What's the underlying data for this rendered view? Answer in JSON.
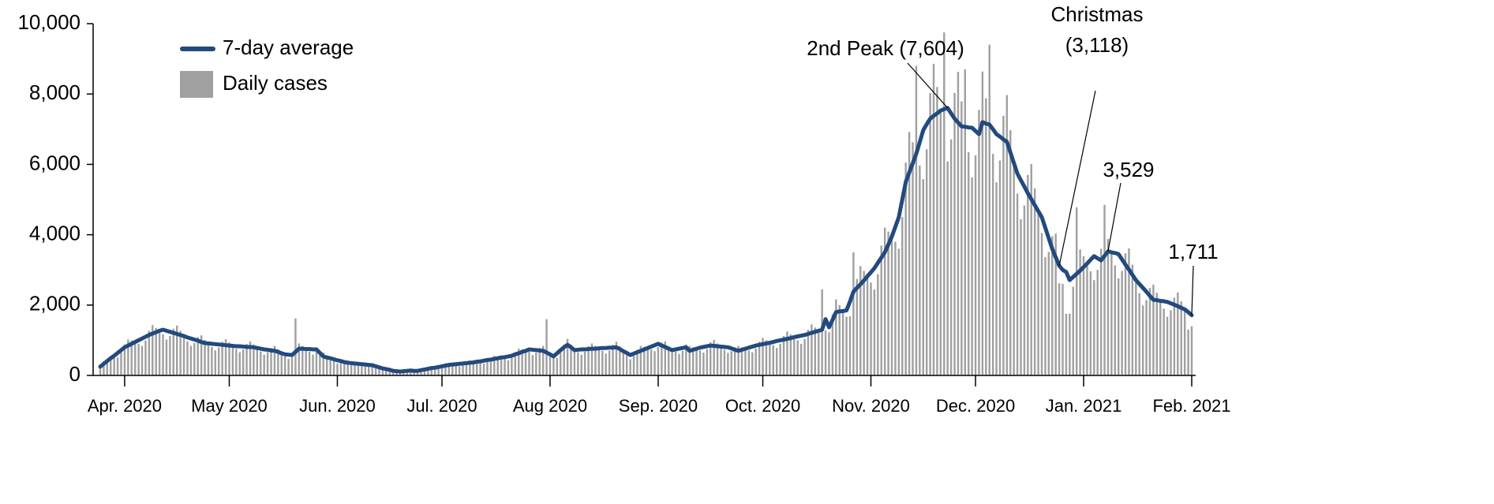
{
  "chart_data": {
    "type": "bar-line",
    "legend": {
      "position": "top-left"
    },
    "xlim": [
      0,
      313
    ],
    "xticks": [
      {
        "value": 7,
        "label": "Apr. 2020"
      },
      {
        "value": 37,
        "label": "May 2020"
      },
      {
        "value": 68,
        "label": "Jun. 2020"
      },
      {
        "value": 98,
        "label": "Jul. 2020"
      },
      {
        "value": 129,
        "label": "Aug 2020"
      },
      {
        "value": 160,
        "label": "Sep. 2020"
      },
      {
        "value": 190,
        "label": "Oct. 2020"
      },
      {
        "value": 221,
        "label": "Nov. 2020"
      },
      {
        "value": 251,
        "label": "Dec. 2020"
      },
      {
        "value": 282,
        "label": "Jan. 2021"
      },
      {
        "value": 313,
        "label": "Feb. 2021"
      }
    ],
    "ylim": [
      0,
      10000
    ],
    "yticks": [
      0,
      {
        "value": 2000,
        "label": "2,000"
      },
      {
        "value": 4000,
        "label": "4,000"
      },
      {
        "value": 6000,
        "label": "6,000"
      },
      {
        "value": 8000,
        "label": "8,000"
      },
      {
        "value": 10000,
        "label": "10,000"
      }
    ],
    "series": [
      {
        "name": "7-day average",
        "type": "line",
        "color": "#224a7e",
        "values": [
          250,
          330,
          410,
          490,
          560,
          640,
          720,
          800,
          850,
          900,
          950,
          1000,
          1050,
          1100,
          1150,
          1190,
          1230,
          1270,
          1300,
          1270,
          1240,
          1210,
          1180,
          1150,
          1120,
          1080,
          1050,
          1020,
          990,
          950,
          920,
          910,
          900,
          890,
          880,
          870,
          860,
          850,
          840,
          830,
          830,
          820,
          810,
          810,
          800,
          780,
          760,
          740,
          730,
          710,
          700,
          670,
          630,
          600,
          590,
          580,
          670,
          760,
          760,
          750,
          750,
          740,
          740,
          640,
          540,
          510,
          490,
          460,
          430,
          410,
          380,
          360,
          350,
          340,
          330,
          320,
          310,
          300,
          290,
          260,
          230,
          200,
          180,
          160,
          130,
          120,
          110,
          120,
          130,
          140,
          130,
          130,
          150,
          170,
          190,
          210,
          220,
          240,
          260,
          280,
          300,
          310,
          320,
          330,
          340,
          350,
          360,
          370,
          390,
          400,
          420,
          440,
          450,
          470,
          490,
          510,
          520,
          540,
          560,
          600,
          630,
          670,
          700,
          740,
          730,
          720,
          710,
          700,
          650,
          600,
          540,
          630,
          720,
          800,
          870,
          800,
          720,
          730,
          740,
          740,
          750,
          760,
          760,
          770,
          780,
          780,
          790,
          790,
          800,
          750,
          690,
          640,
          580,
          620,
          660,
          700,
          740,
          780,
          820,
          860,
          900,
          850,
          810,
          760,
          720,
          740,
          760,
          780,
          800,
          700,
          730,
          760,
          790,
          810,
          830,
          850,
          840,
          830,
          820,
          810,
          800,
          770,
          730,
          700,
          730,
          760,
          790,
          820,
          850,
          870,
          890,
          910,
          930,
          950,
          980,
          1000,
          1020,
          1040,
          1060,
          1090,
          1110,
          1130,
          1150,
          1180,
          1210,
          1240,
          1270,
          1300,
          1600,
          1370,
          1580,
          1800,
          1820,
          1830,
          1850,
          2100,
          2380,
          2490,
          2590,
          2700,
          2820,
          2930,
          3050,
          3200,
          3350,
          3500,
          3720,
          3950,
          4220,
          4500,
          5000,
          5500,
          5770,
          6030,
          6300,
          6630,
          6970,
          7140,
          7300,
          7380,
          7450,
          7530,
          7570,
          7604,
          7450,
          7300,
          7190,
          7080,
          7070,
          7050,
          7040,
          6950,
          6860,
          7200,
          7160,
          7130,
          7000,
          6860,
          6790,
          6710,
          6640,
          6340,
          6040,
          5740,
          5550,
          5370,
          5180,
          5010,
          4840,
          4670,
          4500,
          4200,
          3900,
          3600,
          3360,
          3118,
          3000,
          2940,
          2710,
          2800,
          2890,
          2980,
          3080,
          3180,
          3290,
          3390,
          3330,
          3270,
          3400,
          3529,
          3500,
          3480,
          3450,
          3300,
          3150,
          3010,
          2860,
          2710,
          2600,
          2490,
          2380,
          2260,
          2150,
          2140,
          2120,
          2110,
          2090,
          2050,
          2010,
          1970,
          1920,
          1880,
          1800,
          1711
        ]
      },
      {
        "name": "Daily cases",
        "type": "bar",
        "color": "#a0a0a0",
        "values": [
          280,
          400,
          450,
          490,
          500,
          510,
          650,
          880,
          1020,
          990,
          950,
          900,
          840,
          990,
          1270,
          1430,
          1350,
          1270,
          1170,
          1020,
          1120,
          1330,
          1420,
          1270,
          1120,
          970,
          840,
          920,
          1090,
          1140,
          1010,
          910,
          810,
          710,
          790,
          960,
          1030,
          940,
          840,
          750,
          660,
          740,
          890,
          970,
          880,
          780,
          680,
          590,
          660,
          780,
          840,
          740,
          630,
          540,
          470,
          520,
          1620,
          910,
          840,
          750,
          680,
          590,
          670,
          700,
          650,
          560,
          490,
          410,
          340,
          370,
          420,
          430,
          390,
          340,
          300,
          260,
          280,
          330,
          350,
          290,
          230,
          180,
          140,
          140,
          140,
          140,
          120,
          120,
          120,
          110,
          120,
          140,
          180,
          190,
          190,
          190,
          180,
          220,
          290,
          340,
          330,
          310,
          290,
          260,
          310,
          390,
          430,
          410,
          390,
          360,
          340,
          400,
          500,
          560,
          540,
          510,
          470,
          430,
          500,
          660,
          760,
          740,
          700,
          670,
          580,
          650,
          780,
          840,
          1600,
          600,
          490,
          500,
          650,
          880,
          1040,
          880,
          720,
          660,
          590,
          670,
          830,
          910,
          840,
          770,
          700,
          620,
          710,
          870,
          960,
          830,
          690,
          580,
          460,
          560,
          730,
          840,
          810,
          780,
          740,
          690,
          810,
          940,
          970,
          840,
          720,
          670,
          610,
          700,
          880,
          840,
          800,
          760,
          710,
          650,
          750,
          940,
          1010,
          910,
          820,
          730,
          640,
          690,
          800,
          840,
          800,
          760,
          710,
          660,
          770,
          960,
          1070,
          1000,
          930,
          860,
          780,
          900,
          1120,
          1250,
          1170,
          1090,
          1000,
          900,
          1040,
          1300,
          1450,
          1360,
          1270,
          2450,
          1280,
          1230,
          1740,
          2160,
          2000,
          1830,
          1670,
          1680,
          3500,
          2740,
          3110,
          2970,
          2820,
          2640,
          2440,
          2880,
          3690,
          4200,
          4090,
          3950,
          3800,
          3600,
          4500,
          6050,
          6920,
          6630,
          8800,
          5970,
          5580,
          6430,
          8030,
          8860,
          8200,
          7530,
          9750,
          6080,
          6710,
          8030,
          8630,
          7790,
          8700,
          6350,
          5630,
          6260,
          7550,
          8640,
          7880,
          9400,
          6300,
          5490,
          6110,
          7380,
          7970,
          6970,
          6040,
          5170,
          4440,
          4830,
          5700,
          6010,
          5320,
          4670,
          4050,
          3360,
          3510,
          3960,
          4030,
          2620,
          2600,
          1750,
          1760,
          2520,
          4780,
          3580,
          3390,
          3180,
          2960,
          2710,
          3000,
          3600,
          4850,
          3880,
          3500,
          3130,
          2760,
          2970,
          3470,
          3610,
          3150,
          2710,
          2340,
          1990,
          2140,
          2490,
          2580,
          2350,
          2120,
          1900,
          1670,
          1850,
          2210,
          2360,
          2110,
          1880,
          1300,
          1400
        ]
      }
    ],
    "annotations": [
      {
        "lines": [
          "2nd Peak (7,604)"
        ],
        "x": 243,
        "y": 7604
      },
      {
        "lines": [
          "Christmas",
          "(3,118)"
        ],
        "x": 275,
        "y": 3118
      },
      {
        "lines": [
          "3,529"
        ],
        "x": 289,
        "y": 3529
      },
      {
        "lines": [
          "1,711"
        ],
        "x": 313,
        "y": 1711
      }
    ]
  }
}
